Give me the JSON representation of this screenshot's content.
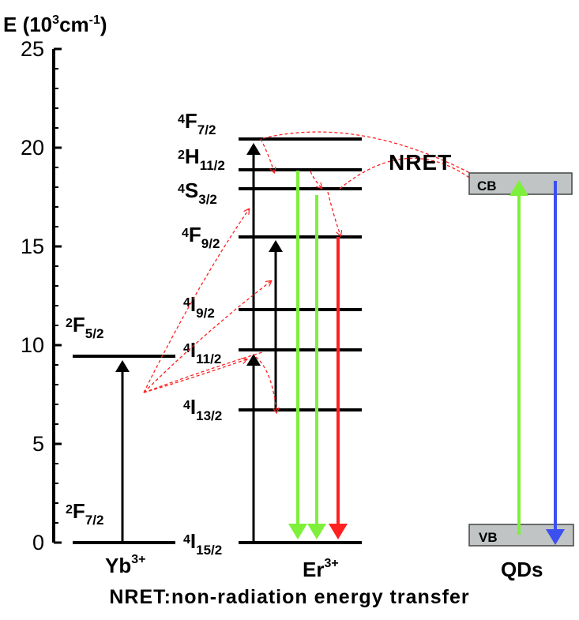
{
  "axis": {
    "title": "E (10",
    "title_sup": "3",
    "title_mid": "cm",
    "title_sup2": "-1",
    "title_end": ")",
    "ticks": [
      "0",
      "5",
      "10",
      "15",
      "20",
      "25"
    ]
  },
  "yb": {
    "name": "Yb",
    "charge": "3+",
    "levels": [
      {
        "sup": "2",
        "letter": "F",
        "sub": "7/2",
        "energy": 0
      },
      {
        "sup": "2",
        "letter": "F",
        "sub": "5/2",
        "energy": 9.4
      }
    ]
  },
  "er": {
    "name": "Er",
    "charge": "3+",
    "levels": [
      {
        "sup": "4",
        "letter": "I",
        "sub": "15/2",
        "energy": 0
      },
      {
        "sup": "4",
        "letter": "I",
        "sub": "13/2",
        "energy": 6.6
      },
      {
        "sup": "4",
        "letter": "I",
        "sub": "11/2",
        "energy": 9.7
      },
      {
        "sup": "4",
        "letter": "I",
        "sub": "9/2",
        "energy": 11.8
      },
      {
        "sup": "4",
        "letter": "F",
        "sub": "9/2",
        "energy": 15.5
      },
      {
        "sup": "4",
        "letter": "S",
        "sub": "3/2",
        "energy": 18.0
      },
      {
        "sup": "2",
        "letter": "H",
        "sub": "11/2",
        "energy": 18.9
      },
      {
        "sup": "4",
        "letter": "F",
        "sub": "7/2",
        "energy": 20.5
      }
    ]
  },
  "qds": {
    "name": "QDs",
    "cb_label": "CB",
    "vb_label": "VB"
  },
  "nret_label": "NRET",
  "caption": "NRET:non-radiation energy transfer",
  "colors": {
    "excitation": "#000000",
    "green_emission": "#7ef03c",
    "red_emission": "#ff2020",
    "blue_emission": "#3c50f0",
    "nret": "#ff2020",
    "band": "#c0c4c4"
  }
}
